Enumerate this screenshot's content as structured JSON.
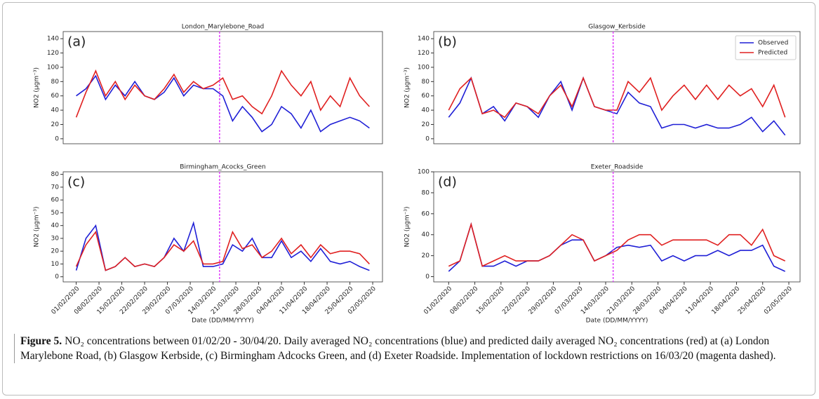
{
  "chart_data": [
    {
      "type": "line",
      "title": "London_Marylebone_Road",
      "panel": "(a)",
      "ylabel": "NO2 (μgm⁻³)",
      "x": [
        "01/02/2020",
        "04/02/2020",
        "07/02/2020",
        "10/02/2020",
        "13/02/2020",
        "16/02/2020",
        "19/02/2020",
        "22/02/2020",
        "25/02/2020",
        "28/02/2020",
        "02/03/2020",
        "05/03/2020",
        "08/03/2020",
        "11/03/2020",
        "14/03/2020",
        "17/03/2020",
        "20/03/2020",
        "23/03/2020",
        "26/03/2020",
        "29/03/2020",
        "01/04/2020",
        "04/04/2020",
        "07/04/2020",
        "10/04/2020",
        "13/04/2020",
        "16/04/2020",
        "19/04/2020",
        "22/04/2020",
        "25/04/2020",
        "28/04/2020",
        "01/05/2020"
      ],
      "xlim": [
        "28/01/2020",
        "05/05/2020"
      ],
      "ylim": [
        -7,
        150
      ],
      "yticks": [
        0,
        20,
        40,
        60,
        80,
        100,
        120,
        140
      ],
      "vline": "16/03/2020",
      "vline_color": "#e040fb",
      "series": [
        {
          "name": "Observed",
          "color": "#1f1fd6",
          "values": [
            60,
            70,
            88,
            55,
            75,
            60,
            80,
            60,
            55,
            65,
            85,
            60,
            75,
            70,
            70,
            60,
            25,
            45,
            30,
            10,
            20,
            45,
            35,
            15,
            40,
            10,
            20,
            25,
            30,
            25,
            15
          ]
        },
        {
          "name": "Predicted",
          "color": "#e02020",
          "values": [
            30,
            65,
            95,
            60,
            80,
            55,
            75,
            60,
            55,
            70,
            90,
            65,
            80,
            70,
            75,
            85,
            55,
            60,
            45,
            35,
            60,
            95,
            75,
            60,
            80,
            40,
            60,
            45,
            85,
            60,
            45
          ]
        }
      ]
    },
    {
      "type": "line",
      "title": "Glasgow_Kerbside",
      "panel": "(b)",
      "ylabel": "NO2 (μgm⁻³)",
      "legend": "upper right",
      "x": [
        "01/02/2020",
        "04/02/2020",
        "07/02/2020",
        "10/02/2020",
        "13/02/2020",
        "16/02/2020",
        "19/02/2020",
        "22/02/2020",
        "25/02/2020",
        "28/02/2020",
        "02/03/2020",
        "05/03/2020",
        "08/03/2020",
        "11/03/2020",
        "14/03/2020",
        "17/03/2020",
        "20/03/2020",
        "23/03/2020",
        "26/03/2020",
        "29/03/2020",
        "01/04/2020",
        "04/04/2020",
        "07/04/2020",
        "10/04/2020",
        "13/04/2020",
        "16/04/2020",
        "19/04/2020",
        "22/04/2020",
        "25/04/2020",
        "28/04/2020",
        "01/05/2020"
      ],
      "xlim": [
        "28/01/2020",
        "05/05/2020"
      ],
      "ylim": [
        -7,
        150
      ],
      "yticks": [
        0,
        20,
        40,
        60,
        80,
        100,
        120,
        140
      ],
      "vline": "16/03/2020",
      "vline_color": "#e040fb",
      "series": [
        {
          "name": "Observed",
          "color": "#1f1fd6",
          "values": [
            30,
            50,
            85,
            35,
            45,
            25,
            50,
            45,
            30,
            60,
            80,
            40,
            85,
            45,
            40,
            35,
            65,
            50,
            45,
            15,
            20,
            20,
            15,
            20,
            15,
            15,
            20,
            30,
            10,
            25,
            5
          ]
        },
        {
          "name": "Predicted",
          "color": "#e02020",
          "values": [
            40,
            70,
            85,
            35,
            40,
            30,
            50,
            45,
            35,
            60,
            75,
            45,
            85,
            45,
            40,
            40,
            80,
            65,
            85,
            40,
            60,
            75,
            55,
            75,
            55,
            75,
            60,
            70,
            45,
            75,
            30
          ]
        }
      ]
    },
    {
      "type": "line",
      "title": "Birmingham_Acocks_Green",
      "panel": "(c)",
      "ylabel": "NO2 (μgm⁻³)",
      "xlabel": "Date (DD/MM/YYYY)",
      "x": [
        "01/02/2020",
        "04/02/2020",
        "07/02/2020",
        "10/02/2020",
        "13/02/2020",
        "16/02/2020",
        "19/02/2020",
        "22/02/2020",
        "25/02/2020",
        "28/02/2020",
        "02/03/2020",
        "05/03/2020",
        "08/03/2020",
        "11/03/2020",
        "14/03/2020",
        "17/03/2020",
        "20/03/2020",
        "23/03/2020",
        "26/03/2020",
        "29/03/2020",
        "01/04/2020",
        "04/04/2020",
        "07/04/2020",
        "10/04/2020",
        "13/04/2020",
        "16/04/2020",
        "19/04/2020",
        "22/04/2020",
        "25/04/2020",
        "28/04/2020",
        "01/05/2020"
      ],
      "xlim": [
        "28/01/2020",
        "05/05/2020"
      ],
      "ylim": [
        -4,
        82
      ],
      "yticks": [
        0,
        10,
        20,
        30,
        40,
        50,
        60,
        70,
        80
      ],
      "vline": "16/03/2020",
      "vline_color": "#e040fb",
      "xticks": [
        "01/02/2020",
        "08/02/2020",
        "15/02/2020",
        "22/02/2020",
        "29/02/2020",
        "07/03/2020",
        "14/03/2020",
        "21/03/2020",
        "28/03/2020",
        "04/04/2020",
        "11/04/2020",
        "18/04/2020",
        "25/04/2020",
        "02/05/2020"
      ],
      "series": [
        {
          "name": "Observed",
          "color": "#1f1fd6",
          "values": [
            5,
            30,
            40,
            5,
            8,
            15,
            8,
            10,
            8,
            15,
            30,
            20,
            42,
            8,
            8,
            10,
            25,
            20,
            30,
            15,
            15,
            28,
            15,
            20,
            12,
            22,
            12,
            10,
            12,
            8,
            5
          ]
        },
        {
          "name": "Predicted",
          "color": "#e02020",
          "values": [
            8,
            25,
            35,
            5,
            8,
            15,
            8,
            10,
            8,
            15,
            25,
            20,
            28,
            10,
            10,
            12,
            35,
            22,
            25,
            15,
            20,
            30,
            18,
            25,
            15,
            25,
            18,
            20,
            20,
            18,
            10
          ]
        }
      ]
    },
    {
      "type": "line",
      "title": "Exeter_Roadside",
      "panel": "(d)",
      "ylabel": "NO2 (μgm⁻³)",
      "xlabel": "Date (DD/MM/YYYY)",
      "x": [
        "01/02/2020",
        "04/02/2020",
        "07/02/2020",
        "10/02/2020",
        "13/02/2020",
        "16/02/2020",
        "19/02/2020",
        "22/02/2020",
        "25/02/2020",
        "28/02/2020",
        "02/03/2020",
        "05/03/2020",
        "08/03/2020",
        "11/03/2020",
        "14/03/2020",
        "17/03/2020",
        "20/03/2020",
        "23/03/2020",
        "26/03/2020",
        "29/03/2020",
        "01/04/2020",
        "04/04/2020",
        "07/04/2020",
        "10/04/2020",
        "13/04/2020",
        "16/04/2020",
        "19/04/2020",
        "22/04/2020",
        "25/04/2020",
        "28/04/2020",
        "01/05/2020"
      ],
      "xlim": [
        "28/01/2020",
        "05/05/2020"
      ],
      "ylim": [
        -5,
        100
      ],
      "yticks": [
        0,
        20,
        40,
        60,
        80,
        100
      ],
      "vline": "16/03/2020",
      "vline_color": "#e040fb",
      "xticks": [
        "01/02/2020",
        "08/02/2020",
        "15/02/2020",
        "22/02/2020",
        "29/02/2020",
        "07/03/2020",
        "14/03/2020",
        "21/03/2020",
        "28/03/2020",
        "04/04/2020",
        "11/04/2020",
        "18/04/2020",
        "25/04/2020",
        "02/05/2020"
      ],
      "series": [
        {
          "name": "Observed",
          "color": "#1f1fd6",
          "values": [
            5,
            15,
            50,
            10,
            10,
            15,
            10,
            15,
            15,
            20,
            30,
            35,
            35,
            15,
            20,
            28,
            30,
            28,
            30,
            15,
            20,
            15,
            20,
            20,
            25,
            20,
            25,
            25,
            30,
            10,
            5
          ]
        },
        {
          "name": "Predicted",
          "color": "#e02020",
          "values": [
            10,
            15,
            50,
            10,
            15,
            20,
            15,
            15,
            15,
            20,
            30,
            40,
            35,
            15,
            20,
            25,
            35,
            40,
            40,
            30,
            35,
            35,
            35,
            35,
            30,
            40,
            40,
            30,
            45,
            20,
            15
          ]
        }
      ]
    }
  ],
  "caption": {
    "label": "Figure 5.",
    "text": "NO₂ concentrations between 01/02/20 - 30/04/20. Daily averaged NO₂ concentrations (blue) and predicted daily averaged NO₂ concentrations (red) at (a) London Marylebone Road, (b) Glasgow Kerbside, (c) Birmingham Adcocks Green, and (d) Exeter Roadside. Implementation of lockdown restrictions on 16/03/20 (magenta dashed)."
  }
}
